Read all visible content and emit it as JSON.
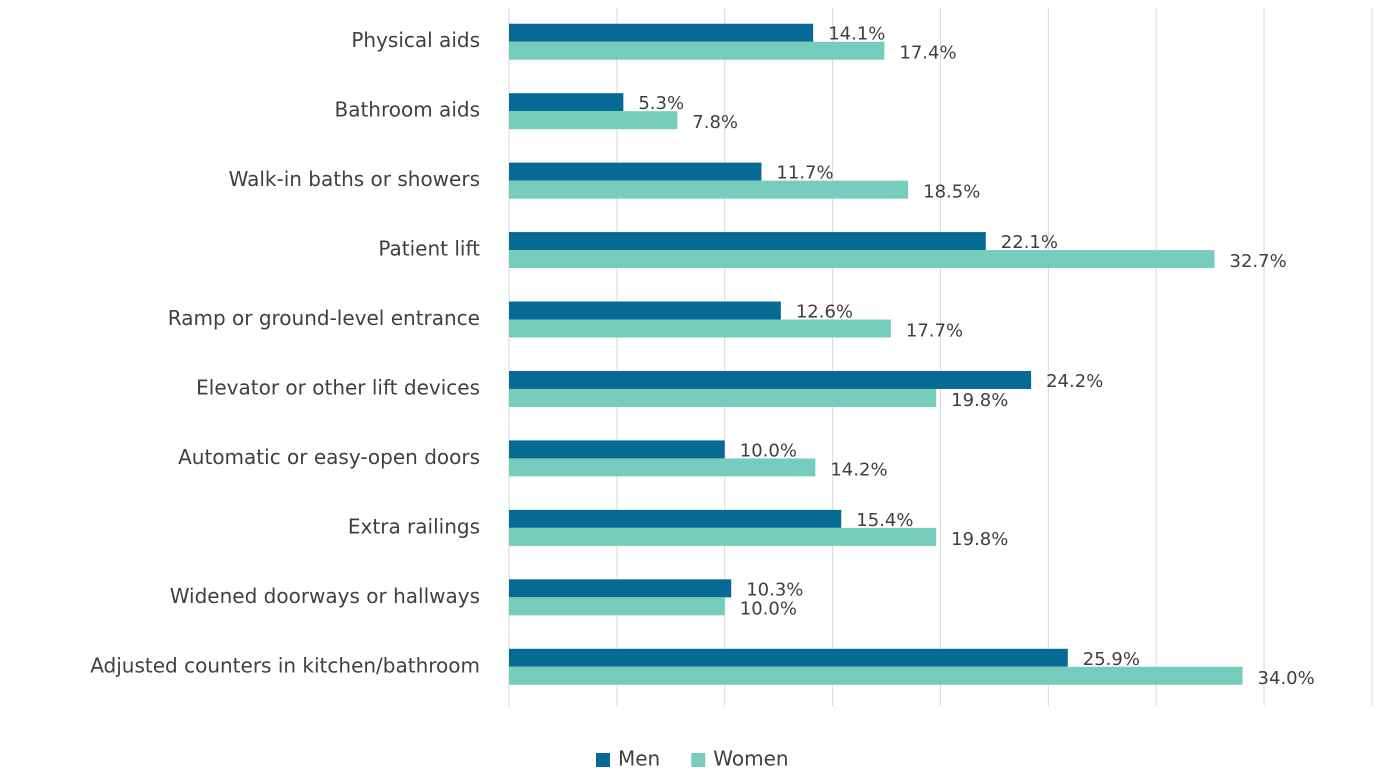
{
  "chart_data": {
    "type": "hbar",
    "categories": [
      "Physical aids",
      "Bathroom aids",
      "Walk-in baths or showers",
      "Patient lift",
      "Ramp or ground-level entrance",
      "Elevator or other lift devices",
      "Automatic or easy-open doors",
      "Extra railings",
      "Widened doorways or hallways",
      "Adjusted counters in kitchen/bathroom"
    ],
    "series": [
      {
        "name": "Men",
        "color": "#076a94",
        "values": [
          14.1,
          5.3,
          11.7,
          22.1,
          12.6,
          24.2,
          10.0,
          15.4,
          10.3,
          25.9
        ],
        "value_labels": [
          "14.1%",
          "5.3%",
          "11.7%",
          "22.1%",
          "12.6%",
          "24.2%",
          "10.0%",
          "15.4%",
          "10.3%",
          "25.9%"
        ]
      },
      {
        "name": "Women",
        "color": "#76cdbb",
        "values": [
          17.4,
          7.8,
          18.5,
          32.7,
          17.7,
          19.8,
          14.2,
          19.8,
          10.0,
          34.0
        ],
        "value_labels": [
          "17.4%",
          "7.8%",
          "18.5%",
          "32.7%",
          "17.7%",
          "19.8%",
          "14.2%",
          "19.8%",
          "10.0%",
          "34.0%"
        ]
      }
    ],
    "xlim": [
      0,
      40
    ],
    "xticks": [
      0,
      5,
      10,
      15,
      20,
      25,
      30,
      35,
      40
    ],
    "grid": true,
    "legend": "bottom"
  }
}
